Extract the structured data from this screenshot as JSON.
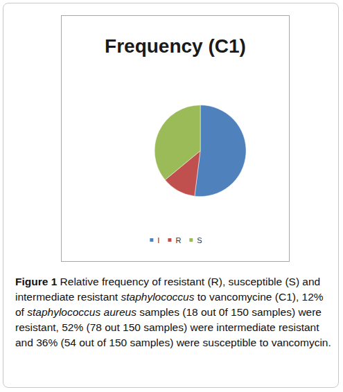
{
  "chart_data": {
    "type": "pie",
    "title": "Frequency (C1)",
    "categories": [
      "I",
      "R",
      "S"
    ],
    "values": [
      52,
      12,
      36
    ],
    "colors": [
      "#4f81bd",
      "#c0504d",
      "#9bbb59"
    ],
    "legend": "bottom",
    "data_labels": false
  },
  "caption": {
    "label": "Figure 1",
    "segments": [
      "Relative frequency of resistant (R), susceptible (S) and intermediate resistant ",
      {
        "italic": "staphylococcus"
      },
      " to vancomycine (C1), 12% of ",
      {
        "italic": "staphylococcus aureus"
      },
      " samples (18 out 0f 150 samples) were resistant, 52% (78 out 150 samples) were intermediate resistant and 36% (54 out of 150 samples) were susceptible to vancomycin."
    ]
  }
}
